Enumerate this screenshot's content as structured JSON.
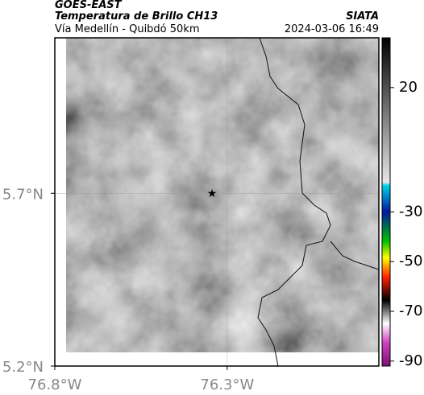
{
  "header": {
    "source": "GOES-EAST",
    "title": "Temperatura de Brillo CH13",
    "subtitle": "Vía Medellín - Quibdó 50km",
    "agency": "SIATA",
    "timestamp": "2024-03-06 16:49"
  },
  "map": {
    "xlim": [
      -76.8,
      -75.86
    ],
    "ylim": [
      5.2,
      6.15
    ],
    "xticks": [
      {
        "value": -76.8,
        "label": "76.8°W"
      },
      {
        "value": -76.3,
        "label": "76.3°W"
      }
    ],
    "yticks": [
      {
        "value": 5.2,
        "label": "5.2°N"
      },
      {
        "value": 5.7,
        "label": "5.7°N"
      }
    ],
    "grid": true
  },
  "colorbar": {
    "lim": [
      -92,
      40
    ],
    "ticks": [
      20,
      -30,
      -50,
      -70,
      -90
    ]
  }
}
